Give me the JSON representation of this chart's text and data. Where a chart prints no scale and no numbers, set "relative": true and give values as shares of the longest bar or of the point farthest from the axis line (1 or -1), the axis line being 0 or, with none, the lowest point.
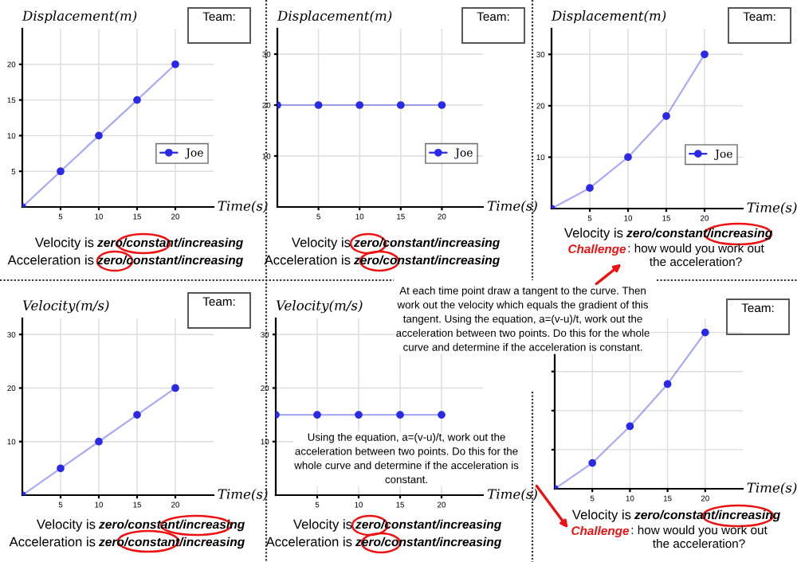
{
  "chart_data": [
    {
      "type": "line",
      "ylabel": "Displacement(m)",
      "xlabel": "Time(s)",
      "x": [
        0,
        5,
        10,
        15,
        20
      ],
      "xlim": [
        0,
        25
      ],
      "xticks": [
        5,
        10,
        15,
        20
      ],
      "ylim": [
        0,
        25
      ],
      "yticks": [
        5,
        10,
        15,
        20
      ],
      "grid": true,
      "legend": "right",
      "marker": "circle",
      "line_style": "solid",
      "series": [
        {
          "name": "Joe",
          "color": "#2a2ae6",
          "values": [
            0,
            5,
            10,
            15,
            20
          ]
        }
      ],
      "annotations": [
        "Team:",
        "Velocity is",
        "zero/constant/increasing",
        "Acceleration is",
        "zero/constant/increasing"
      ]
    },
    {
      "type": "line",
      "ylabel": "Displacement(m)",
      "xlabel": "Time(s)",
      "x": [
        0,
        5,
        10,
        15,
        20
      ],
      "xlim": [
        0,
        25
      ],
      "xticks": [
        5,
        10,
        15,
        20
      ],
      "ylim": [
        0,
        35
      ],
      "yticks": [
        10,
        20,
        30
      ],
      "grid": true,
      "legend": "right",
      "marker": "circle",
      "line_style": "solid",
      "series": [
        {
          "name": "Joe",
          "color": "#2a2ae6",
          "values": [
            20,
            20,
            20,
            20,
            20
          ]
        }
      ],
      "annotations": [
        "Team:",
        "Velocity is",
        "zero/constant/increasing",
        "Acceleration is",
        "zero/constant/increasing"
      ]
    },
    {
      "type": "line",
      "ylabel": "Displacement(m)",
      "xlabel": "Time(s)",
      "x": [
        0,
        5,
        10,
        15,
        20
      ],
      "xlim": [
        0,
        25
      ],
      "xticks": [
        5,
        10,
        15,
        20
      ],
      "ylim": [
        0,
        35
      ],
      "yticks": [
        10,
        20,
        30
      ],
      "grid": true,
      "legend": "right",
      "marker": "circle",
      "line_style": "solid",
      "series": [
        {
          "name": "Joe",
          "color": "#2a2ae6",
          "values": [
            0,
            4,
            10,
            18,
            30
          ]
        }
      ],
      "annotations": [
        "Team:",
        "Velocity is",
        "zero/constant/increasing",
        "Challenge",
        ": how would you work out the acceleration?"
      ]
    },
    {
      "type": "line",
      "ylabel": "Velocity(m/s)",
      "xlabel": "Time(s)",
      "x": [
        0,
        5,
        10,
        15,
        20
      ],
      "xlim": [
        0,
        25
      ],
      "xticks": [
        5,
        10,
        15,
        20
      ],
      "ylim": [
        0,
        33
      ],
      "yticks": [
        10,
        20,
        30
      ],
      "grid": true,
      "marker": "circle",
      "line_style": "solid",
      "series": [
        {
          "color": "#2a2ae6",
          "values": [
            0,
            5,
            10,
            15,
            20
          ]
        }
      ],
      "annotations": [
        "Team:",
        "Velocity is",
        "zero/constant/increasing",
        "Acceleration is",
        "zero/constant/increasing"
      ]
    },
    {
      "type": "line",
      "ylabel": "Velocity(m/s)",
      "xlabel": "Time(s)",
      "x": [
        0,
        5,
        10,
        15,
        20
      ],
      "xlim": [
        0,
        25
      ],
      "xticks": [
        5,
        10,
        15,
        20
      ],
      "ylim": [
        0,
        33
      ],
      "yticks": [
        10,
        20,
        30
      ],
      "grid": true,
      "marker": "circle",
      "line_style": "solid",
      "series": [
        {
          "color": "#2a2ae6",
          "values": [
            15,
            15,
            15,
            15,
            15
          ]
        }
      ],
      "annotations": [
        "Velocity is",
        "zero/constant/increasing",
        "Acceleration is",
        "zero/constant/increasing",
        "Using the equation, a=(v-u)/t, work out the acceleration between two points. Do this for the whole curve and determine if the acceleration is constant."
      ]
    },
    {
      "type": "line",
      "relative": true,
      "xlabel": "Time(s)",
      "x": [
        0,
        5,
        10,
        15,
        20
      ],
      "xlim": [
        0,
        25
      ],
      "xticks": [
        5,
        10,
        15,
        20
      ],
      "tick_labels": "x",
      "grid": true,
      "marker": "circle",
      "line_style": "solid",
      "series": [
        {
          "color": "#2a2ae6",
          "values": [
            0,
            0.165,
            0.4,
            0.67,
            1
          ]
        }
      ],
      "annotations": [
        "Team:",
        "At each time point draw a tangent to the curve. Then work out the velocity which equals the gradient of this tangent. Using the equation, a=(v-u)/t, work out the acceleration between two points. Do this for the whole curve and determine if the acceleration is constant.",
        "Velocity is",
        "zero/constant/increasing",
        "Challenge",
        ": how would you work out the acceleration?"
      ]
    }
  ]
}
